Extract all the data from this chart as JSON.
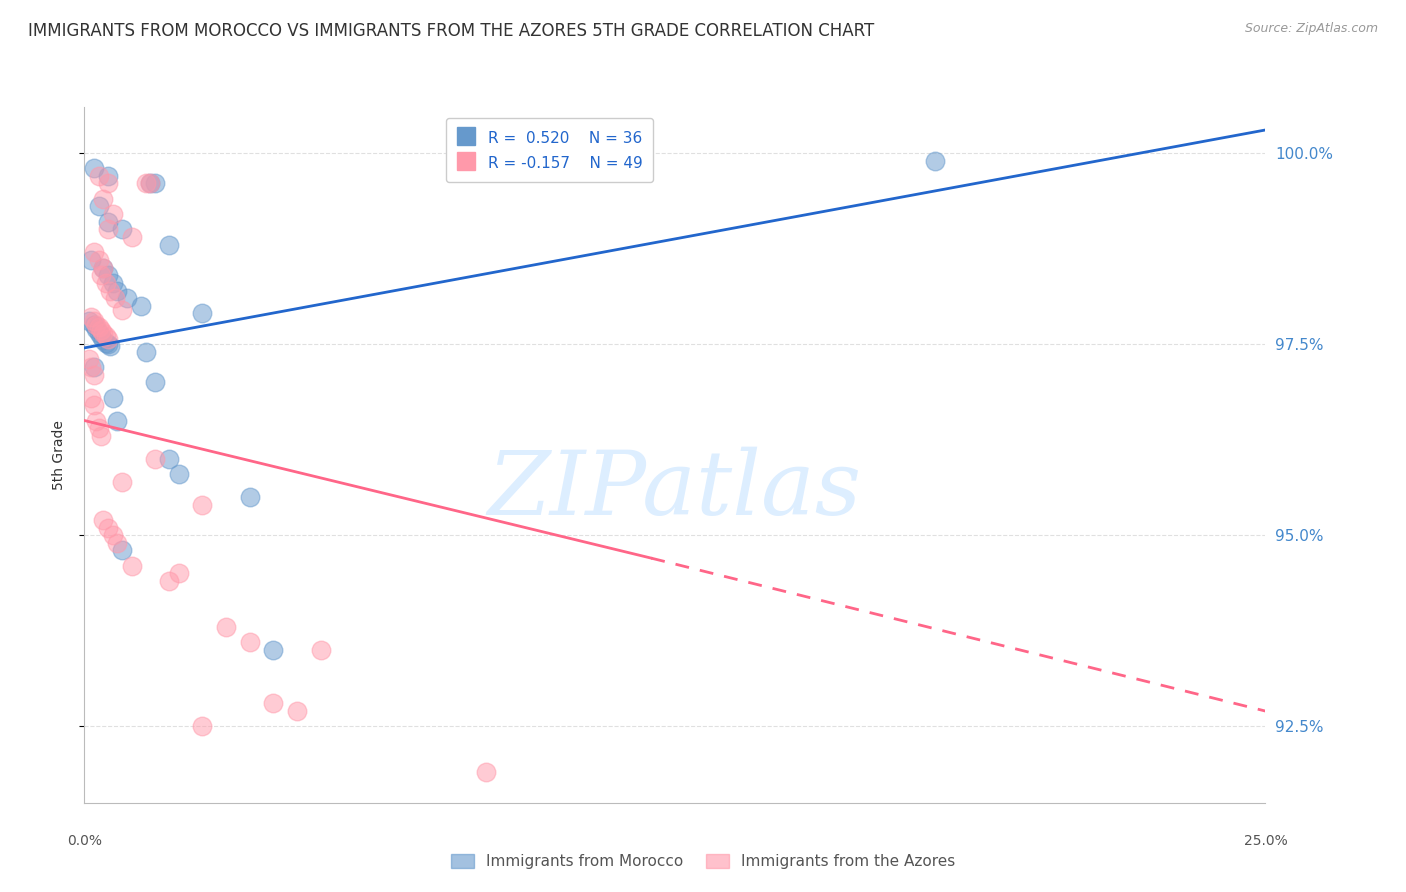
{
  "title": "IMMIGRANTS FROM MOROCCO VS IMMIGRANTS FROM THE AZORES 5TH GRADE CORRELATION CHART",
  "source": "Source: ZipAtlas.com",
  "ylabel": "5th Grade",
  "xlim": [
    0.0,
    25.0
  ],
  "ylim": [
    91.5,
    100.6
  ],
  "yticks": [
    92.5,
    95.0,
    97.5,
    100.0
  ],
  "ytick_labels": [
    "92.5%",
    "95.0%",
    "97.5%",
    "100.0%"
  ],
  "morocco_color": "#6699CC",
  "azores_color": "#FF99AA",
  "morocco_R": 0.52,
  "morocco_N": 36,
  "azores_R": -0.157,
  "azores_N": 49,
  "morocco_points": [
    [
      0.2,
      99.8
    ],
    [
      0.5,
      99.7
    ],
    [
      1.4,
      99.6
    ],
    [
      1.5,
      99.6
    ],
    [
      0.3,
      99.3
    ],
    [
      0.5,
      99.1
    ],
    [
      0.8,
      99.0
    ],
    [
      1.8,
      98.8
    ],
    [
      0.15,
      98.6
    ],
    [
      0.4,
      98.5
    ],
    [
      0.5,
      98.4
    ],
    [
      0.6,
      98.3
    ],
    [
      0.7,
      98.2
    ],
    [
      0.9,
      98.1
    ],
    [
      1.2,
      98.0
    ],
    [
      2.5,
      97.9
    ],
    [
      0.1,
      97.8
    ],
    [
      0.2,
      97.75
    ],
    [
      0.25,
      97.7
    ],
    [
      0.3,
      97.65
    ],
    [
      0.35,
      97.6
    ],
    [
      0.4,
      97.55
    ],
    [
      0.45,
      97.52
    ],
    [
      0.5,
      97.5
    ],
    [
      0.55,
      97.48
    ],
    [
      1.3,
      97.4
    ],
    [
      0.2,
      97.2
    ],
    [
      1.5,
      97.0
    ],
    [
      0.6,
      96.8
    ],
    [
      0.7,
      96.5
    ],
    [
      1.8,
      96.0
    ],
    [
      2.0,
      95.8
    ],
    [
      3.5,
      95.5
    ],
    [
      0.8,
      94.8
    ],
    [
      18.0,
      99.9
    ],
    [
      4.0,
      93.5
    ]
  ],
  "azores_points": [
    [
      0.3,
      99.7
    ],
    [
      0.5,
      99.6
    ],
    [
      1.3,
      99.6
    ],
    [
      1.4,
      99.6
    ],
    [
      0.4,
      99.4
    ],
    [
      0.6,
      99.2
    ],
    [
      0.5,
      99.0
    ],
    [
      1.0,
      98.9
    ],
    [
      0.2,
      98.7
    ],
    [
      0.3,
      98.6
    ],
    [
      0.4,
      98.5
    ],
    [
      0.35,
      98.4
    ],
    [
      0.45,
      98.3
    ],
    [
      0.55,
      98.2
    ],
    [
      0.65,
      98.1
    ],
    [
      0.8,
      97.95
    ],
    [
      0.15,
      97.85
    ],
    [
      0.2,
      97.8
    ],
    [
      0.25,
      97.75
    ],
    [
      0.3,
      97.72
    ],
    [
      0.35,
      97.68
    ],
    [
      0.4,
      97.64
    ],
    [
      0.45,
      97.6
    ],
    [
      0.5,
      97.56
    ],
    [
      0.1,
      97.3
    ],
    [
      0.15,
      97.2
    ],
    [
      0.2,
      97.1
    ],
    [
      0.15,
      96.8
    ],
    [
      0.2,
      96.7
    ],
    [
      0.25,
      96.5
    ],
    [
      0.3,
      96.4
    ],
    [
      0.35,
      96.3
    ],
    [
      1.5,
      96.0
    ],
    [
      0.8,
      95.7
    ],
    [
      2.5,
      95.4
    ],
    [
      0.4,
      95.2
    ],
    [
      0.5,
      95.1
    ],
    [
      0.6,
      95.0
    ],
    [
      0.7,
      94.9
    ],
    [
      1.0,
      94.6
    ],
    [
      2.0,
      94.5
    ],
    [
      1.8,
      94.4
    ],
    [
      3.0,
      93.8
    ],
    [
      3.5,
      93.6
    ],
    [
      5.0,
      93.5
    ],
    [
      4.0,
      92.8
    ],
    [
      4.5,
      92.7
    ],
    [
      2.5,
      92.5
    ],
    [
      8.5,
      91.9
    ]
  ],
  "morocco_line": {
    "x0": 0.0,
    "y0": 97.45,
    "x1": 25.0,
    "y1": 100.3
  },
  "azores_line_solid": {
    "x0": 0.0,
    "y0": 96.5,
    "x1": 12.0,
    "y1": 94.7
  },
  "azores_line_dashed": {
    "x0": 12.0,
    "y0": 94.7,
    "x1": 25.0,
    "y1": 92.7
  },
  "watermark": "ZIPatlas",
  "watermark_color": "#DDEEFF",
  "background_color": "#FFFFFF",
  "grid_color": "#DDDDDD"
}
